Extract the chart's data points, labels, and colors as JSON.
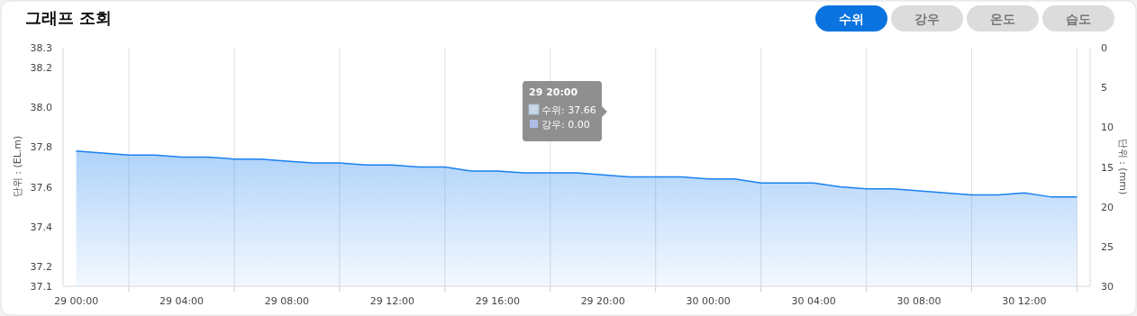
{
  "chart_data": {
    "type": "area",
    "title": "그래프 조회",
    "ylabel": "단위 : (EL.m)",
    "y2label": "단위 : (mm)",
    "annotations": [
      "수위",
      "강우",
      "온도",
      "습도",
      "29 20:00",
      "수위: 37.66",
      "강우: 0.00"
    ],
    "categories": [
      "29 00:00",
      null,
      null,
      null,
      "29 04:00",
      null,
      null,
      null,
      "29 08:00",
      null,
      null,
      null,
      "29 12:00",
      null,
      null,
      null,
      "29 16:00",
      null,
      null,
      null,
      "29 20:00",
      null,
      null,
      null,
      "30 00:00",
      null,
      null,
      null,
      "30 04:00",
      null,
      null,
      null,
      "30 08:00",
      null,
      null,
      null,
      "30 12:00",
      null,
      null
    ],
    "series": [
      {
        "color": "#1a80f0",
        "values": [
          37.78,
          37.77,
          37.76,
          37.76,
          37.75,
          37.75,
          37.74,
          37.74,
          37.73,
          37.72,
          37.72,
          37.71,
          37.71,
          37.7,
          37.7,
          37.68,
          37.68,
          37.67,
          37.67,
          37.67,
          37.66,
          37.65,
          37.65,
          37.65,
          37.64,
          37.64,
          37.62,
          37.62,
          37.62,
          37.6,
          37.59,
          37.59,
          37.58,
          37.57,
          37.56,
          37.56,
          37.57,
          37.55,
          37.55
        ]
      }
    ],
    "ylim": [
      37.1,
      38.3
    ],
    "yticks": [
      37.1,
      37.2,
      37.4,
      37.6,
      37.8,
      {
        "value": 38,
        "label": "38.0"
      },
      38.2,
      38.3
    ],
    "y2lim": [
      30,
      0
    ],
    "y2ticks": [
      0,
      5,
      10,
      15,
      20,
      25,
      30
    ],
    "grid": "x",
    "marker": "none",
    "line_style": "solid"
  }
}
